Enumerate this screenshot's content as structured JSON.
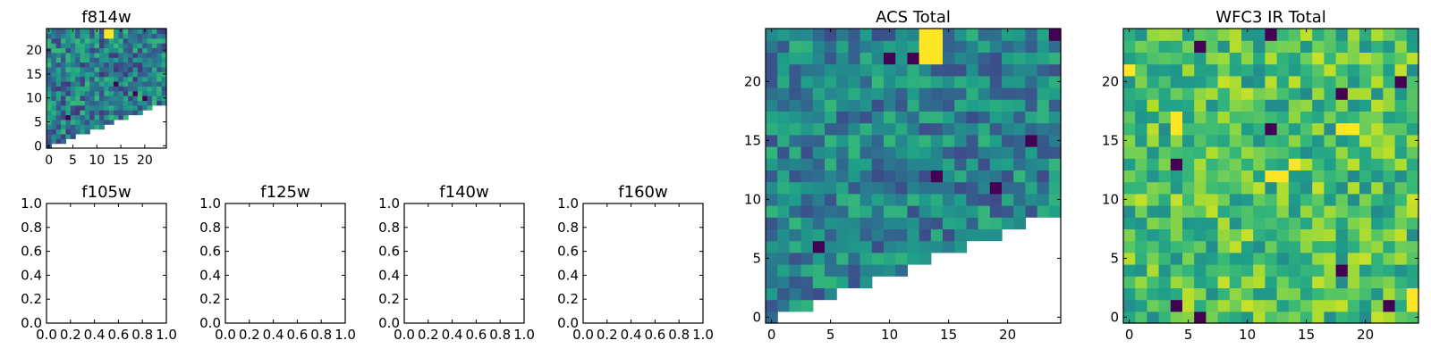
{
  "chart_data": [
    {
      "id": "f814w",
      "type": "heatmap",
      "title": "f814w",
      "colormap": "viridis",
      "grid_size": 25,
      "masked_region": "lower-right triangle",
      "bright_cells": [
        [
          12,
          23
        ],
        [
          13,
          23
        ],
        [
          12,
          24
        ],
        [
          13,
          24
        ]
      ],
      "dark_cells": [
        [
          14,
          13
        ],
        [
          18,
          11
        ],
        [
          4,
          6
        ],
        [
          20,
          10
        ]
      ],
      "xticks": [
        "0",
        "5",
        "10",
        "15",
        "20"
      ],
      "yticks": [
        "0",
        "5",
        "10",
        "15",
        "20"
      ],
      "xlim": [
        -0.5,
        24.5
      ],
      "ylim": [
        -0.5,
        24.5
      ]
    },
    {
      "id": "f105w",
      "type": "heatmap",
      "title": "f105w",
      "empty": true,
      "xticks": [
        "0.0",
        "0.2",
        "0.4",
        "0.6",
        "0.8",
        "1.0"
      ],
      "yticks": [
        "0.0",
        "0.2",
        "0.4",
        "0.6",
        "0.8",
        "1.0"
      ],
      "xlim": [
        0,
        1
      ],
      "ylim": [
        0,
        1
      ]
    },
    {
      "id": "f125w",
      "type": "heatmap",
      "title": "f125w",
      "empty": true,
      "xticks": [
        "0.0",
        "0.2",
        "0.4",
        "0.6",
        "0.8",
        "1.0"
      ],
      "yticks": [
        "0.0",
        "0.2",
        "0.4",
        "0.6",
        "0.8",
        "1.0"
      ],
      "xlim": [
        0,
        1
      ],
      "ylim": [
        0,
        1
      ]
    },
    {
      "id": "f140w",
      "type": "heatmap",
      "title": "f140w",
      "empty": true,
      "xticks": [
        "0.0",
        "0.2",
        "0.4",
        "0.6",
        "0.8",
        "1.0"
      ],
      "yticks": [
        "0.0",
        "0.2",
        "0.4",
        "0.6",
        "0.8",
        "1.0"
      ],
      "xlim": [
        0,
        1
      ],
      "ylim": [
        0,
        1
      ]
    },
    {
      "id": "f160w",
      "type": "heatmap",
      "title": "f160w",
      "empty": true,
      "xticks": [
        "0.0",
        "0.2",
        "0.4",
        "0.6",
        "0.8",
        "1.0"
      ],
      "yticks": [
        "0.0",
        "0.2",
        "0.4",
        "0.6",
        "0.8",
        "1.0"
      ],
      "xlim": [
        0,
        1
      ],
      "ylim": [
        0,
        1
      ]
    },
    {
      "id": "acs_total",
      "type": "heatmap",
      "title": "ACS Total",
      "colormap": "viridis",
      "grid_size": 25,
      "masked_region": "lower-right triangle",
      "bright_cells": [
        [
          13,
          23
        ],
        [
          14,
          23
        ],
        [
          13,
          24
        ],
        [
          14,
          24
        ],
        [
          13,
          22
        ],
        [
          14,
          22
        ]
      ],
      "dark_cells": [
        [
          24,
          24
        ],
        [
          10,
          22
        ],
        [
          12,
          22
        ],
        [
          22,
          15
        ],
        [
          14,
          12
        ],
        [
          19,
          11
        ],
        [
          4,
          6
        ]
      ],
      "xticks": [
        "0",
        "5",
        "10",
        "15",
        "20"
      ],
      "yticks": [
        "0",
        "5",
        "10",
        "15",
        "20"
      ],
      "xlim": [
        -0.5,
        24.5
      ],
      "ylim": [
        -0.5,
        24.5
      ]
    },
    {
      "id": "wfc3_ir_total",
      "type": "heatmap",
      "title": "WFC3 IR Total",
      "colormap": "viridis",
      "grid_size": 25,
      "masked_region": "none",
      "bright_cells": [
        [
          0,
          21
        ],
        [
          4,
          17
        ],
        [
          12,
          12
        ],
        [
          13,
          12
        ],
        [
          14,
          13
        ],
        [
          24,
          1
        ],
        [
          24,
          2
        ],
        [
          18,
          16
        ],
        [
          19,
          16
        ],
        [
          4,
          16
        ]
      ],
      "dark_cells": [
        [
          6,
          23
        ],
        [
          12,
          24
        ],
        [
          18,
          19
        ],
        [
          23,
          20
        ],
        [
          12,
          16
        ],
        [
          4,
          13
        ],
        [
          18,
          4
        ],
        [
          4,
          1
        ],
        [
          6,
          0
        ],
        [
          22,
          1
        ]
      ],
      "xticks": [
        "0",
        "5",
        "10",
        "15",
        "20"
      ],
      "yticks": [
        "0",
        "5",
        "10",
        "15",
        "20"
      ],
      "xlim": [
        -0.5,
        24.5
      ],
      "ylim": [
        -0.5,
        24.5
      ]
    }
  ],
  "colors": {
    "viridis_low": "#440154",
    "viridis_mid": "#21918c",
    "viridis_high": "#fde725"
  }
}
